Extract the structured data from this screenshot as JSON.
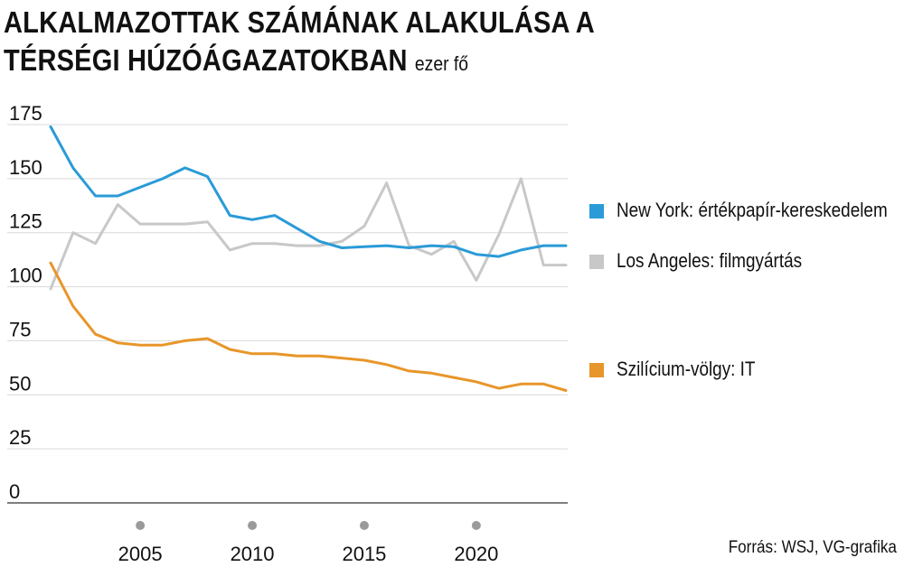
{
  "header": {
    "title": "ALKALMAZOTTAK SZÁMÁNAK ALAKULÁSA A TÉRSÉGI HÚZÓÁGAZATOKBAN",
    "unit": "ezer fő"
  },
  "footer": {
    "source": "Forrás: WSJ, VG-grafika"
  },
  "colors": {
    "grid": "#d9d9d9",
    "axis": "#555555",
    "tick_dot": "#9a9a9a"
  },
  "chart_data": {
    "type": "line",
    "title": "ALKALMAZOTTAK SZÁMÁNAK ALAKULÁSA A TÉRSÉGI HÚZÓÁGAZATOKBAN",
    "unit_label": "ezer fő",
    "xlabel": "",
    "ylabel": "",
    "ylim": [
      0,
      175
    ],
    "xlim": [
      2001,
      2024
    ],
    "yticks": [
      0,
      25,
      50,
      75,
      100,
      125,
      150,
      175
    ],
    "xticks": [
      2005,
      2010,
      2015,
      2020
    ],
    "grid": true,
    "legend_position": "right",
    "x": [
      2001,
      2002,
      2003,
      2004,
      2005,
      2006,
      2007,
      2008,
      2009,
      2010,
      2011,
      2012,
      2013,
      2014,
      2015,
      2016,
      2017,
      2018,
      2019,
      2020,
      2021,
      2022,
      2023,
      2024
    ],
    "series": [
      {
        "name": "New York: értékpapír-kereskedelem",
        "color": "#2a9bd7",
        "values": [
          174,
          155,
          142,
          142,
          146,
          150,
          155,
          151,
          133,
          131,
          133,
          127,
          121,
          118,
          118.5,
          119,
          118,
          119,
          118.5,
          115,
          114,
          117,
          119,
          119
        ]
      },
      {
        "name": "Los Angeles: filmgyártás",
        "color": "#c8c8c8",
        "values": [
          99,
          125,
          120,
          138,
          129,
          129,
          129,
          130,
          117,
          120,
          120,
          119,
          119,
          121,
          128,
          148,
          119,
          115,
          121,
          103,
          124,
          150,
          110,
          110
        ]
      },
      {
        "name": "Szilícium-völgy: IT",
        "color": "#e8962a",
        "values": [
          111,
          91,
          78,
          74,
          73,
          73,
          75,
          76,
          71,
          69,
          69,
          68,
          68,
          67,
          66,
          64,
          61,
          60,
          58,
          56,
          53,
          55,
          55,
          52
        ]
      }
    ]
  }
}
